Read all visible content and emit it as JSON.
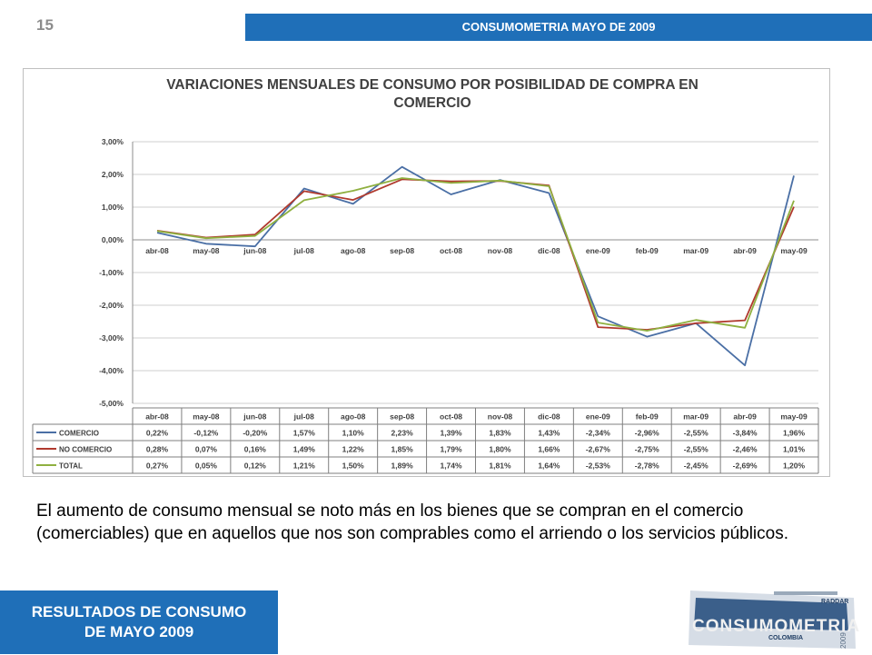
{
  "header": {
    "page_number": "15",
    "banner_title": "CONSUMOMETRIA MAYO DE 2009"
  },
  "chart_data": {
    "type": "line",
    "title_line1": "VARIACIONES MENSUALES DE CONSUMO POR POSIBILIDAD DE COMPRA EN",
    "title_line2": "COMERCIO",
    "categories": [
      "abr-08",
      "may-08",
      "jun-08",
      "jul-08",
      "ago-08",
      "sep-08",
      "oct-08",
      "nov-08",
      "dic-08",
      "ene-09",
      "feb-09",
      "mar-09",
      "abr-09",
      "may-09"
    ],
    "ylim": [
      -5,
      3
    ],
    "yticks": [
      3,
      2,
      1,
      0,
      -1,
      -2,
      -3,
      -4,
      -5
    ],
    "ytick_labels": [
      "3,00%",
      "2,00%",
      "1,00%",
      "0,00%",
      "-1,00%",
      "-2,00%",
      "-3,00%",
      "-4,00%",
      "-5,00%"
    ],
    "grid": true,
    "legend_placement": "data-table",
    "series": [
      {
        "name": "COMERCIO",
        "color": "#4a6fa5",
        "values": [
          0.22,
          -0.12,
          -0.2,
          1.57,
          1.1,
          2.23,
          1.39,
          1.83,
          1.43,
          -2.34,
          -2.96,
          -2.55,
          -3.84,
          1.96
        ],
        "labels": [
          "0,22%",
          "-0,12%",
          "-0,20%",
          "1,57%",
          "1,10%",
          "2,23%",
          "1,39%",
          "1,83%",
          "1,43%",
          "-2,34%",
          "-2,96%",
          "-2,55%",
          "-3,84%",
          "1,96%"
        ]
      },
      {
        "name": "NO COMERCIO",
        "color": "#b03a2e",
        "values": [
          0.28,
          0.07,
          0.16,
          1.49,
          1.22,
          1.85,
          1.79,
          1.8,
          1.66,
          -2.67,
          -2.75,
          -2.55,
          -2.46,
          1.01
        ],
        "labels": [
          "0,28%",
          "0,07%",
          "0,16%",
          "1,49%",
          "1,22%",
          "1,85%",
          "1,79%",
          "1,80%",
          "1,66%",
          "-2,67%",
          "-2,75%",
          "-2,55%",
          "-2,46%",
          "1,01%"
        ]
      },
      {
        "name": "TOTAL",
        "color": "#8fb040",
        "values": [
          0.27,
          0.05,
          0.12,
          1.21,
          1.5,
          1.89,
          1.74,
          1.81,
          1.64,
          -2.53,
          -2.78,
          -2.45,
          -2.69,
          1.2
        ],
        "labels": [
          "0,27%",
          "0,05%",
          "0,12%",
          "1,21%",
          "1,50%",
          "1,89%",
          "1,74%",
          "1,81%",
          "1,64%",
          "-2,53%",
          "-2,78%",
          "-2,45%",
          "-2,69%",
          "1,20%"
        ]
      }
    ]
  },
  "description": "El aumento de consumo mensual se noto más en los bienes que se compran en el comercio (comerciables) que en aquellos que nos son comprables como el arriendo o los servicios públicos.",
  "footer": {
    "line1": "RESULTADOS DE CONSUMO",
    "line2": "DE MAYO 2009"
  },
  "logo": {
    "main_text": "CONSUMOMETRIA",
    "brand_text": "RADDAR",
    "sub_text": "COLOMBIA",
    "year_text": "2009"
  }
}
